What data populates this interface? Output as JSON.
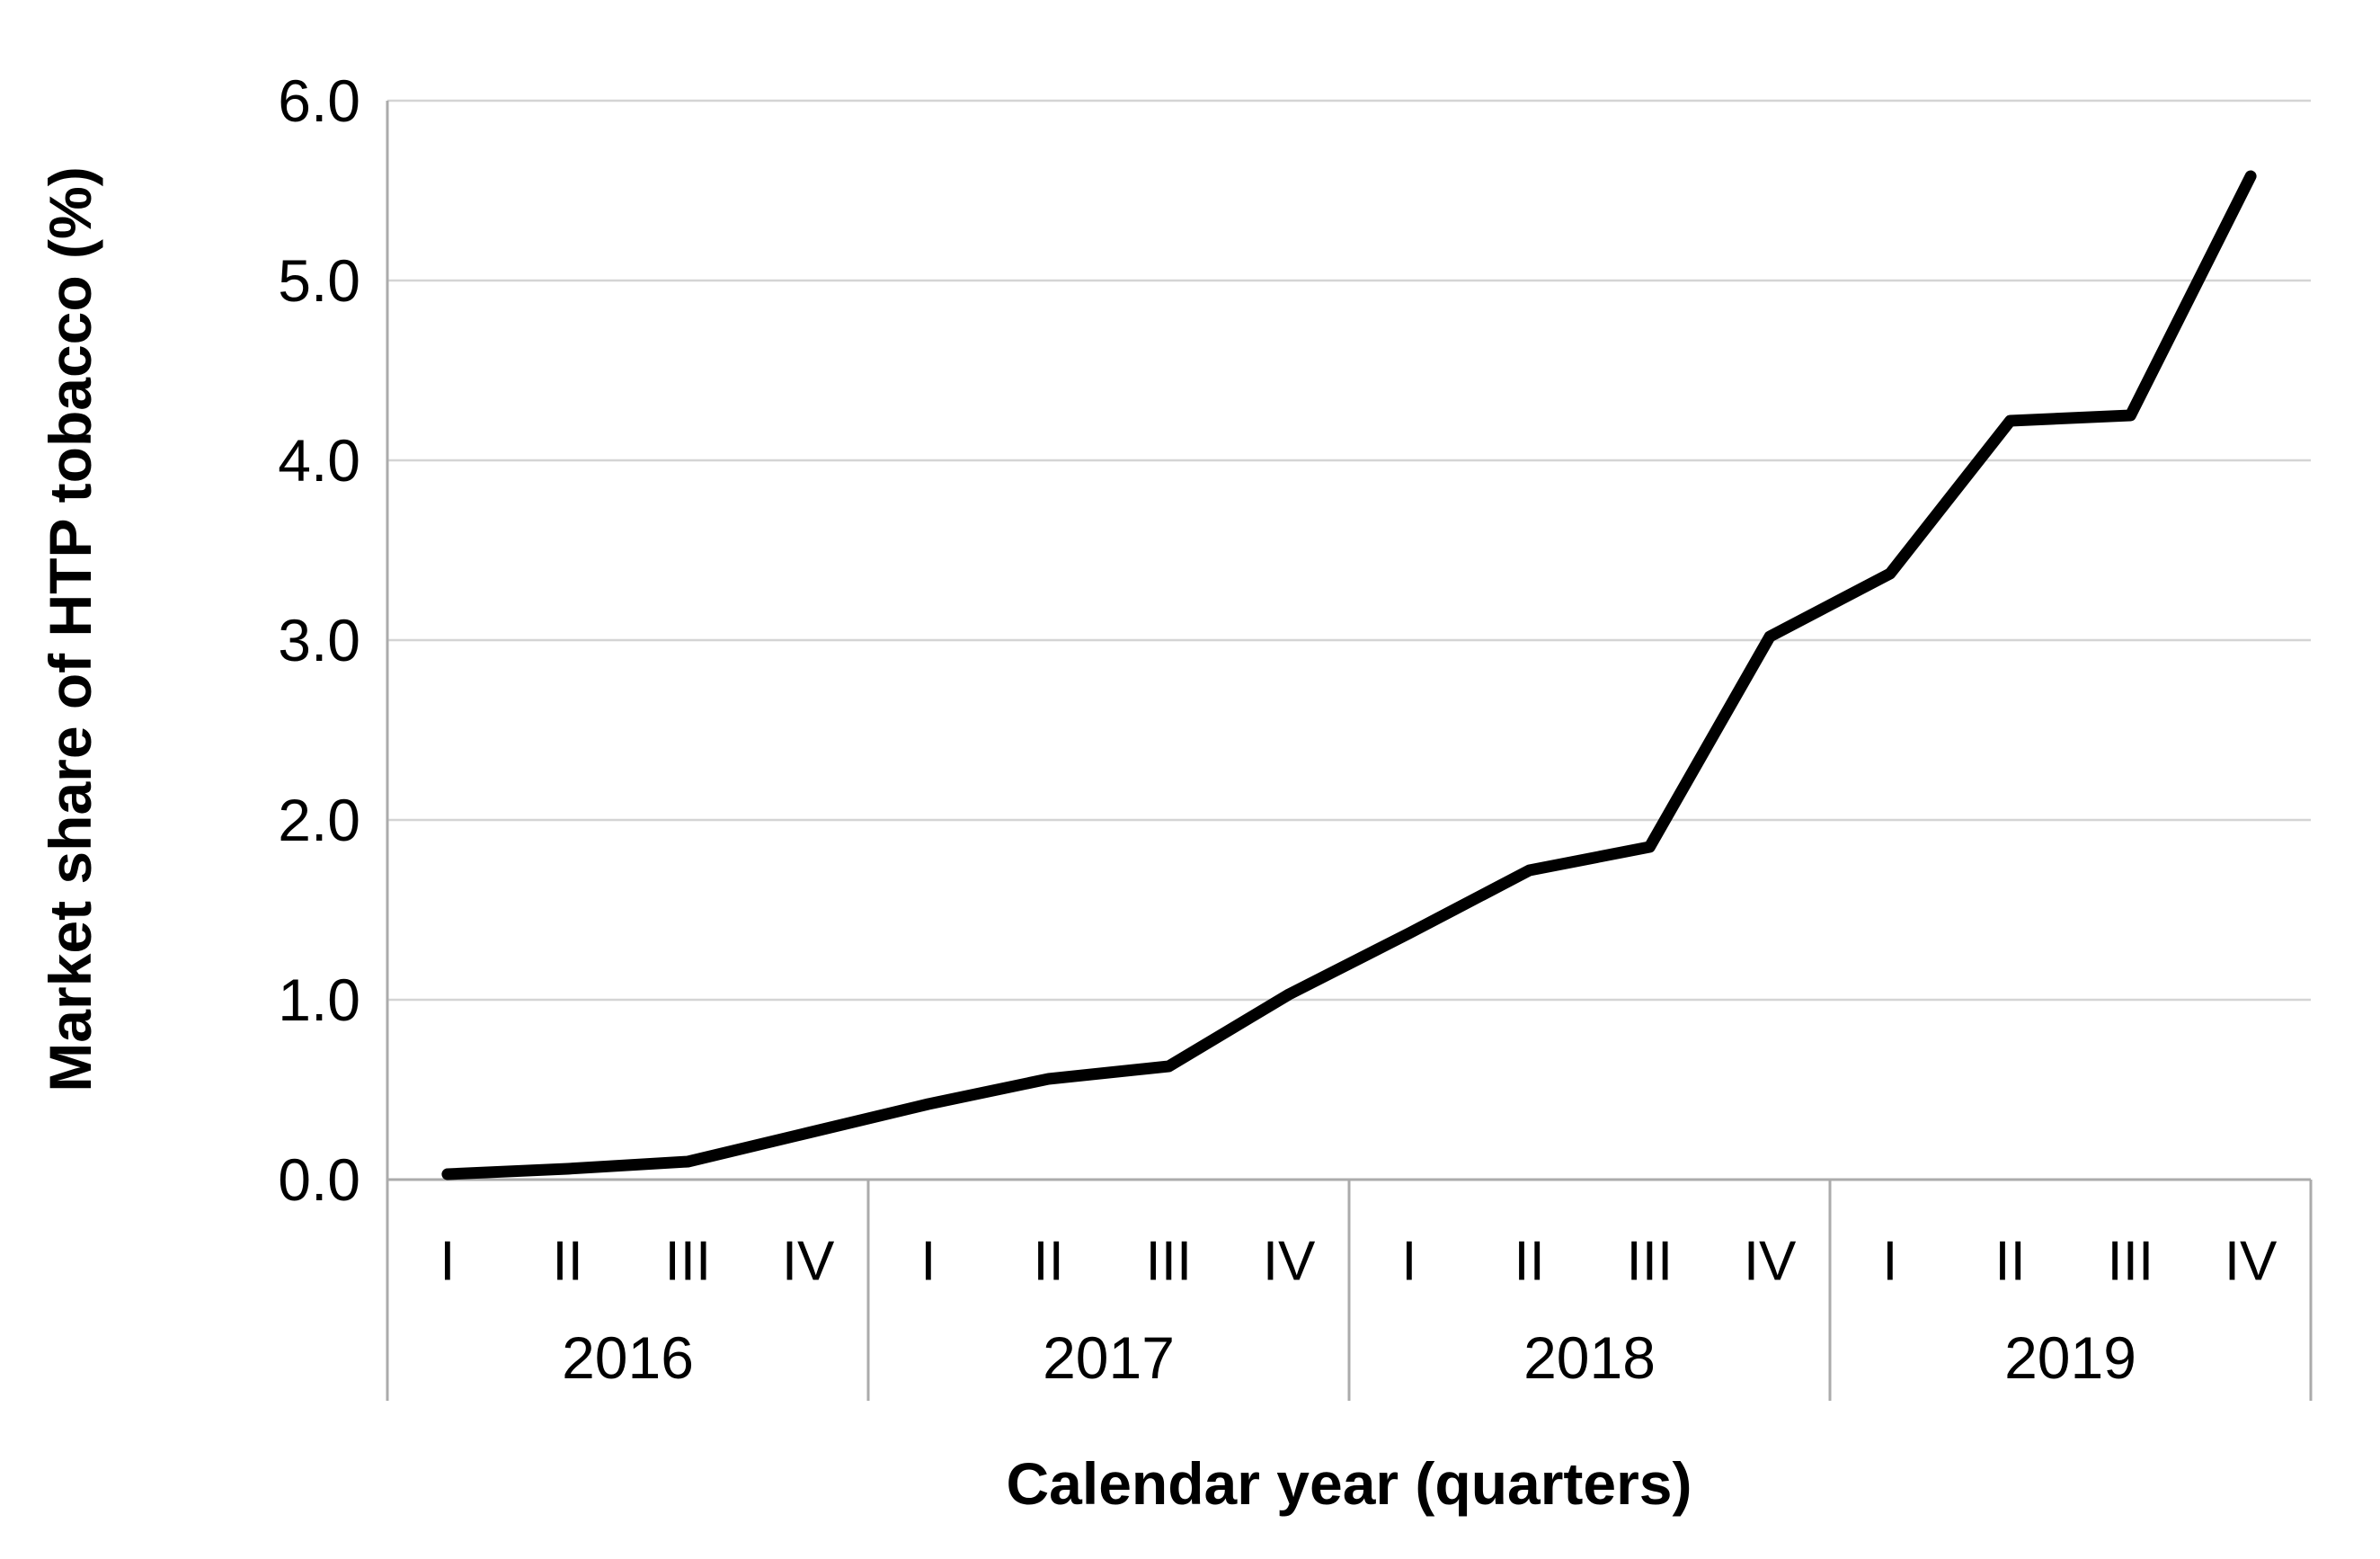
{
  "figure": {
    "background": "#ffffff"
  },
  "colors": {
    "series_line": "#000000",
    "gridline": "#d4d4d4",
    "axis_line": "#ababab",
    "text": "#000000"
  },
  "chart_data": {
    "type": "line",
    "title": "",
    "xlabel": "Calendar year (quarters)",
    "ylabel": "Market share of HTP tobacco (%)",
    "ylim": [
      0,
      6
    ],
    "ytick_values": [
      0,
      1,
      2,
      3,
      4,
      5,
      6
    ],
    "ytick_labels": [
      "0.0",
      "1.0",
      "2.0",
      "3.0",
      "4.0",
      "5.0",
      "6.0"
    ],
    "grid": "horizontal-only",
    "legend": "none",
    "marker": "none",
    "years": [
      "2016",
      "2017",
      "2018",
      "2019"
    ],
    "quarter_labels": [
      "I",
      "II",
      "III",
      "IV"
    ],
    "x_categories": [
      "2016 I",
      "2016 II",
      "2016 III",
      "2016 IV",
      "2017 I",
      "2017 II",
      "2017 III",
      "2017 IV",
      "2018 I",
      "2018 II",
      "2018 III",
      "2018 IV",
      "2019 I",
      "2019 II",
      "2019 III",
      "2019 IV"
    ],
    "series": [
      {
        "name": "Market share of HTP tobacco (%)",
        "color": "#000000",
        "values": [
          0.03,
          0.06,
          0.1,
          0.26,
          0.42,
          0.56,
          0.63,
          1.03,
          1.37,
          1.72,
          1.85,
          3.02,
          3.37,
          4.22,
          4.25,
          5.58
        ]
      }
    ]
  }
}
